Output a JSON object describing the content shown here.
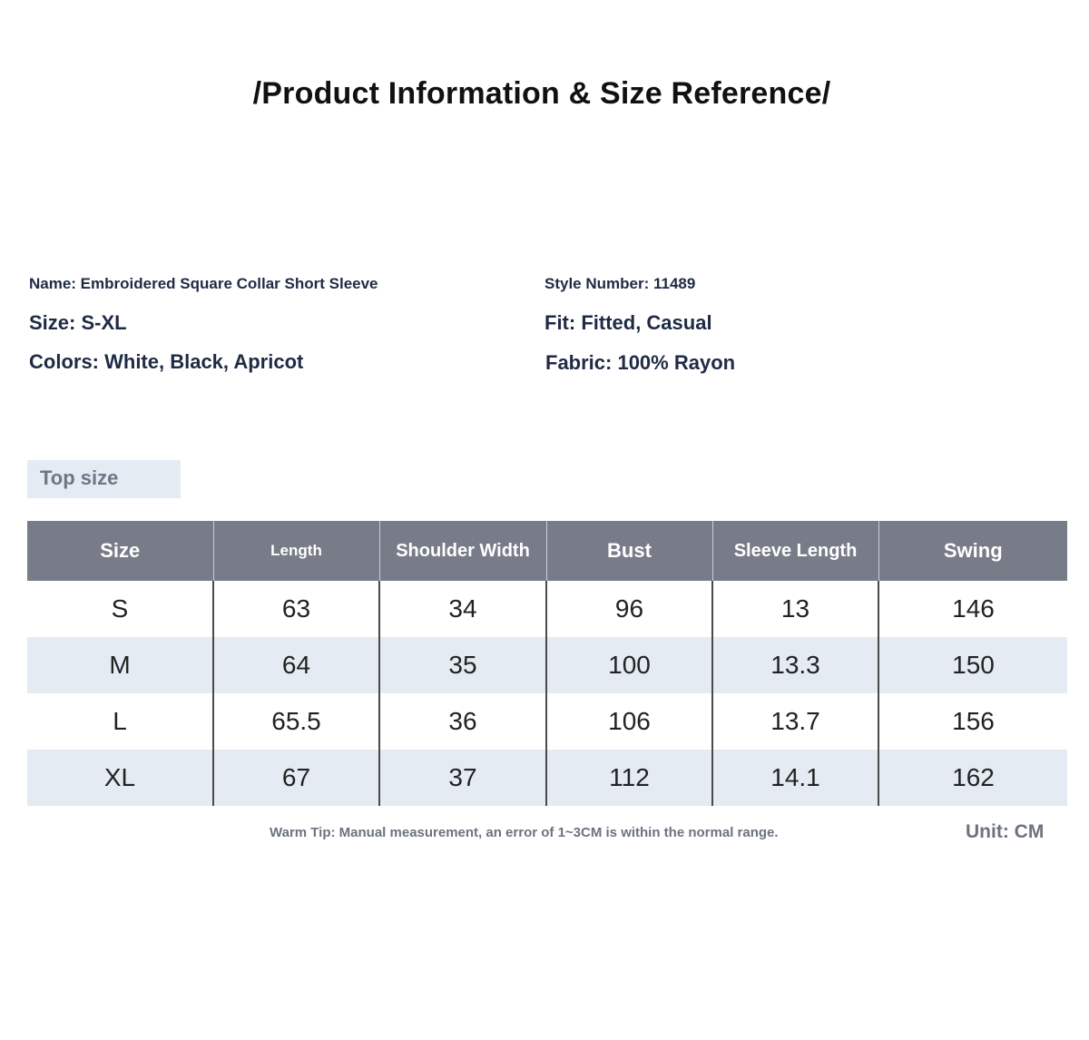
{
  "title": "/Product Information & Size Reference/",
  "info": {
    "name": "Name: Embroidered Square Collar Short Sleeve",
    "style_number": "Style Number: 11489",
    "size": "Size: S-XL",
    "fit": "Fit: Fitted, Casual",
    "colors": "Colors: White, Black, Apricot",
    "fabric": "Fabric: 100% Rayon"
  },
  "section_label": "Top size",
  "table": {
    "headers": [
      "Size",
      "Length",
      "Shoulder Width",
      "Bust",
      "Sleeve Length",
      "Swing"
    ],
    "rows": [
      [
        "S",
        "63",
        "34",
        "96",
        "13",
        "146"
      ],
      [
        "M",
        "64",
        "35",
        "100",
        "13.3",
        "150"
      ],
      [
        "L",
        "65.5",
        "36",
        "106",
        "13.7",
        "156"
      ],
      [
        "XL",
        "67",
        "37",
        "112",
        "14.1",
        "162"
      ]
    ]
  },
  "warm_tip": "Warm Tip: Manual measurement, an error of 1~3CM is within the normal range.",
  "unit": "Unit: CM",
  "colors": {
    "header_bg": "#777c88",
    "stripe_bg": "#e4ebf3",
    "text": "#1f2a44",
    "muted": "#6c7280"
  }
}
